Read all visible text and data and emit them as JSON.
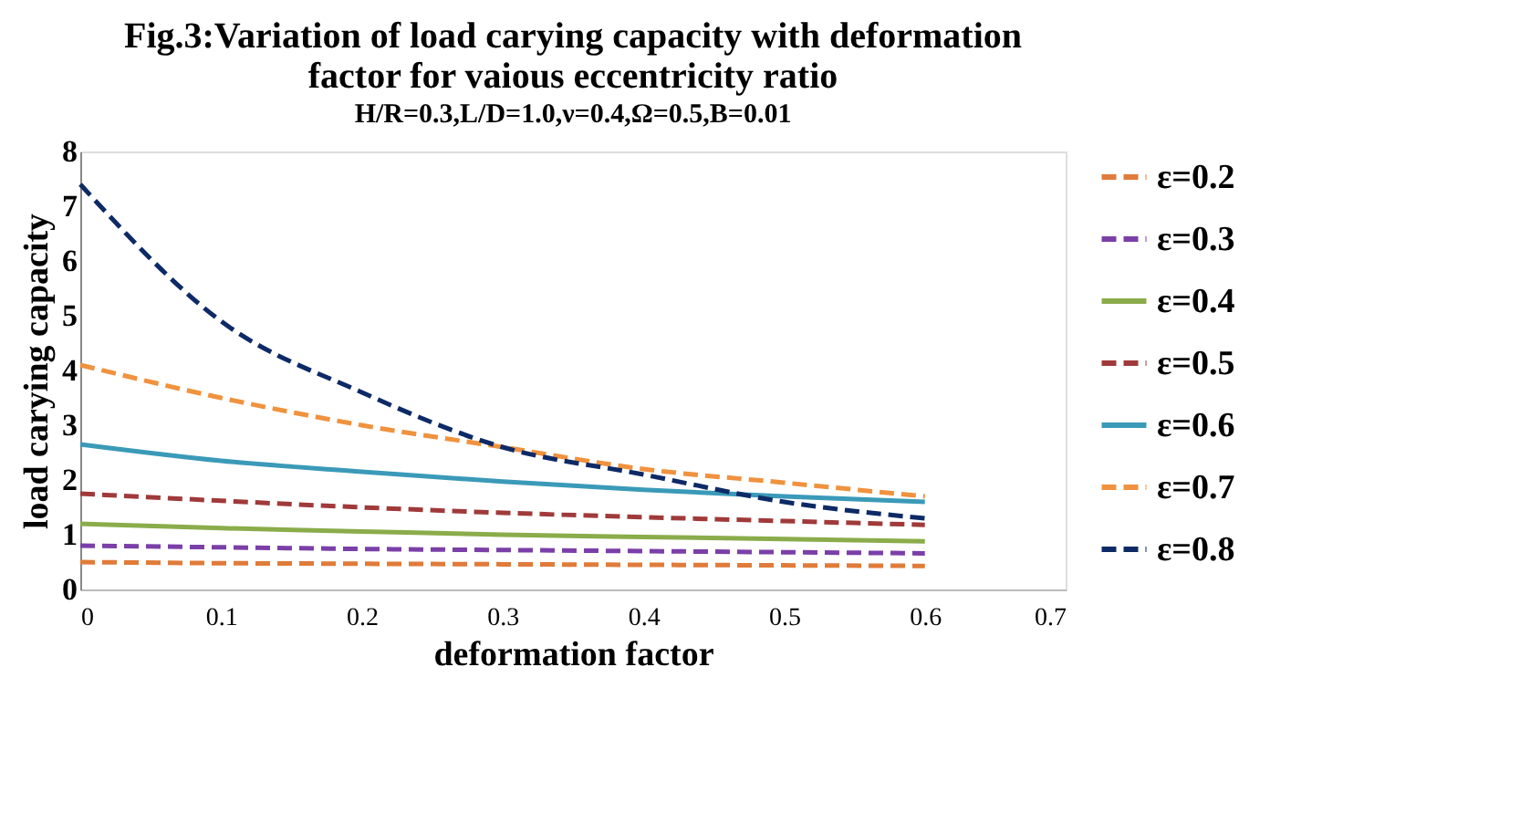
{
  "chart_data": {
    "type": "line",
    "title": [
      "Fig.3:Variation of load carying capacity with deformation",
      "factor for vaious eccentricity  ratio"
    ],
    "subtitle": "H/R=0.3,L/D=1.0,ν=0.4,Ω=0.5,B=0.01",
    "xlabel": "deformation factor",
    "ylabel": "load carying capacity",
    "x": [
      0,
      0.1,
      0.2,
      0.3,
      0.4,
      0.5,
      0.6
    ],
    "series": [
      {
        "name": "ε=0.2",
        "color": "#e07b39",
        "line_style": "dashed",
        "values": [
          0.5,
          0.48,
          0.47,
          0.46,
          0.45,
          0.44,
          0.43
        ]
      },
      {
        "name": "ε=0.3",
        "color": "#7b3fa8",
        "line_style": "dashed",
        "values": [
          0.8,
          0.77,
          0.74,
          0.72,
          0.7,
          0.68,
          0.66
        ]
      },
      {
        "name": "ε=0.4",
        "color": "#8aac4a",
        "line_style": "solid",
        "values": [
          1.2,
          1.12,
          1.06,
          1.0,
          0.96,
          0.92,
          0.88
        ]
      },
      {
        "name": "ε=0.5",
        "color": "#a03a3a",
        "line_style": "dashed",
        "values": [
          1.75,
          1.62,
          1.5,
          1.4,
          1.32,
          1.25,
          1.18
        ]
      },
      {
        "name": "ε=0.6",
        "color": "#3a9ab8",
        "line_style": "solid",
        "values": [
          2.65,
          2.35,
          2.15,
          1.97,
          1.82,
          1.7,
          1.6
        ]
      },
      {
        "name": "ε=0.7",
        "color": "#f0923e",
        "line_style": "dashed",
        "values": [
          4.1,
          3.5,
          3.0,
          2.6,
          2.2,
          1.95,
          1.7
        ]
      },
      {
        "name": "ε=0.8",
        "color": "#0d2a66",
        "line_style": "dashed",
        "values": [
          7.4,
          4.9,
          3.6,
          2.6,
          2.1,
          1.6,
          1.3
        ]
      }
    ],
    "xlim": [
      0,
      0.7
    ],
    "xticks": [
      0,
      0.1,
      0.2,
      0.3,
      0.4,
      0.5,
      0.6,
      0.7
    ],
    "ylim": [
      0,
      8
    ],
    "yticks": [
      0,
      1,
      2,
      3,
      4,
      5,
      6,
      7,
      8
    ],
    "grid": false,
    "legend": "right",
    "marker": "none"
  }
}
